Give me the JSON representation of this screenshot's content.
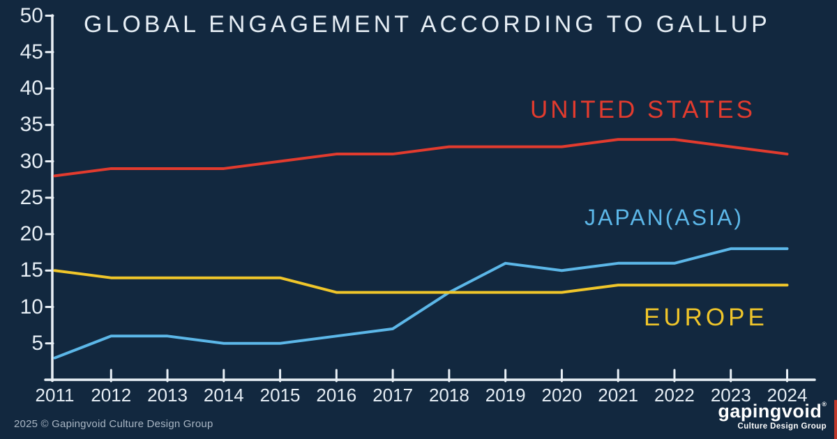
{
  "title": "GLOBAL ENGAGEMENT ACCORDING TO GALLUP",
  "colors": {
    "background": "#12283f",
    "axis": "#e9f0f6",
    "us": "#e23b2e",
    "japan": "#5cb7e8",
    "europe": "#f0c62a",
    "footer_text": "#a9b6c4",
    "logo_text": "#ffffff",
    "logo_accent": "#c0392b"
  },
  "chart_data": {
    "type": "line",
    "title": "GLOBAL ENGAGEMENT ACCORDING TO GALLUP",
    "x": [
      2011,
      2012,
      2013,
      2014,
      2015,
      2016,
      2017,
      2018,
      2019,
      2020,
      2021,
      2022,
      2023,
      2024
    ],
    "series": [
      {
        "name": "UNITED STATES",
        "color_key": "us",
        "values": [
          28,
          29,
          29,
          29,
          30,
          31,
          31,
          32,
          32,
          32,
          33,
          33,
          32,
          31
        ]
      },
      {
        "name": "JAPAN(ASIA)",
        "color_key": "japan",
        "values": [
          3,
          6,
          6,
          5,
          5,
          6,
          7,
          12,
          16,
          15,
          16,
          16,
          18,
          18
        ]
      },
      {
        "name": "EUROPE",
        "color_key": "europe",
        "values": [
          15,
          14,
          14,
          14,
          14,
          12,
          12,
          12,
          12,
          12,
          13,
          13,
          13,
          13
        ]
      }
    ],
    "y_ticks": [
      50,
      45,
      40,
      35,
      30,
      25,
      20,
      15,
      10,
      5
    ],
    "ylim": [
      0,
      50
    ],
    "xlabel": "",
    "ylabel": "",
    "grid": false,
    "legend": "inline-labels"
  },
  "footer": {
    "copyright": "2025 © Gapingvoid Culture Design Group",
    "logo_name": "gapingvoid",
    "logo_reg": "®",
    "logo_tagline": "Culture Design Group"
  }
}
